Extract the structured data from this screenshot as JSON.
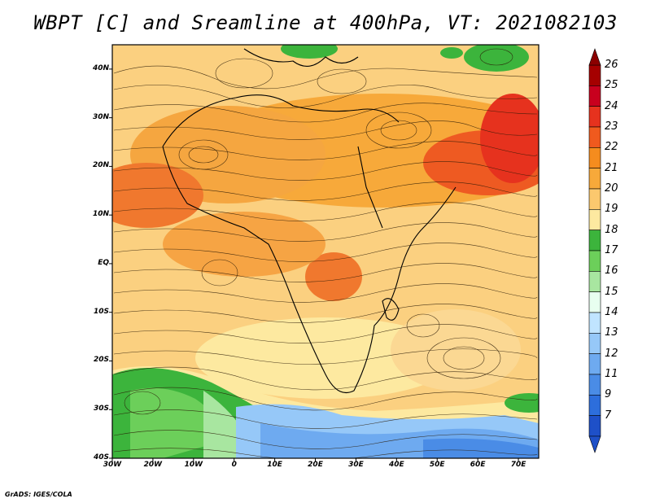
{
  "title": "WBPT [C] and Sreamline at 400hPa, VT: 2021082103",
  "credit": "GrADS: IGES/COLA",
  "map": {
    "lat_labels": [
      "40N",
      "30N",
      "20N",
      "10N",
      "EQ",
      "10S",
      "20S",
      "30S",
      "40S"
    ],
    "lon_labels": [
      "30W",
      "20W",
      "10W",
      "0",
      "10E",
      "20E",
      "30E",
      "40E",
      "50E",
      "60E",
      "70E"
    ],
    "lat_range": [
      -40,
      45
    ],
    "lon_range": [
      -30,
      75
    ]
  },
  "colorbar": {
    "levels": [
      "26",
      "25",
      "24",
      "23",
      "22",
      "21",
      "20",
      "19",
      "18",
      "17",
      "16",
      "15",
      "14",
      "13",
      "12",
      "11",
      "9",
      "7"
    ],
    "colors": [
      "#a50000",
      "#c8001e",
      "#e6321e",
      "#f05a1e",
      "#f58c1e",
      "#f7a93a",
      "#fbc86e",
      "#fde9a0",
      "#3cb43c",
      "#6ccf5a",
      "#a8e6a0",
      "#e8fff0",
      "#c0e4ff",
      "#96c8f8",
      "#6eaaf0",
      "#4a8ce6",
      "#2d6edc",
      "#1e50c8"
    ]
  }
}
